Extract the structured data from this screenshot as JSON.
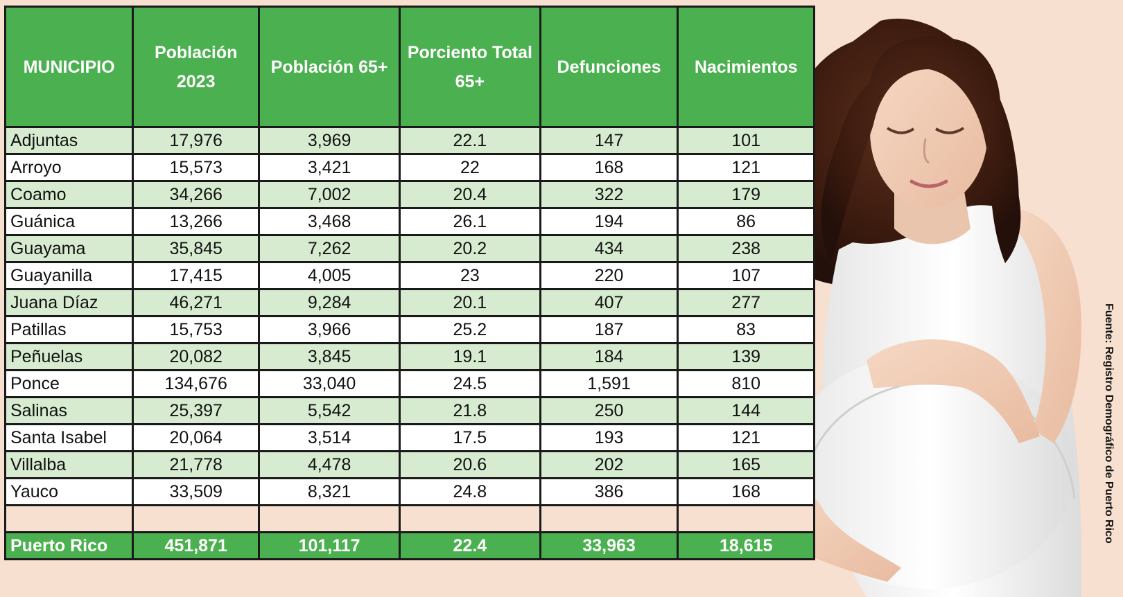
{
  "table": {
    "headers": [
      "MUNICIPIO",
      "Población 2023",
      "Población 65+",
      "Porciento Total 65+",
      "Defunciones",
      "Nacimientos"
    ],
    "rows": [
      [
        "Adjuntas",
        "17,976",
        "3,969",
        "22.1",
        "147",
        "101"
      ],
      [
        "Arroyo",
        "15,573",
        "3,421",
        "22",
        "168",
        "121"
      ],
      [
        "Coamo",
        "34,266",
        "7,002",
        "20.4",
        "322",
        "179"
      ],
      [
        "Guánica",
        "13,266",
        "3,468",
        "26.1",
        "194",
        "86"
      ],
      [
        "Guayama",
        "35,845",
        "7,262",
        "20.2",
        "434",
        "238"
      ],
      [
        "Guayanilla",
        "17,415",
        "4,005",
        "23",
        "220",
        "107"
      ],
      [
        "Juana Díaz",
        "46,271",
        "9,284",
        "20.1",
        "407",
        "277"
      ],
      [
        "Patillas",
        "15,753",
        "3,966",
        "25.2",
        "187",
        "83"
      ],
      [
        "Peñuelas",
        "20,082",
        "3,845",
        "19.1",
        "184",
        "139"
      ],
      [
        "Ponce",
        "134,676",
        "33,040",
        "24.5",
        "1,591",
        "810"
      ],
      [
        "Salinas",
        "25,397",
        "5,542",
        "21.8",
        "250",
        "144"
      ],
      [
        "Santa Isabel",
        "20,064",
        "3,514",
        "17.5",
        "193",
        "121"
      ],
      [
        "Villalba",
        "21,778",
        "4,478",
        "20.6",
        "202",
        "165"
      ],
      [
        "Yauco",
        "33,509",
        "8,321",
        "24.8",
        "386",
        "168"
      ]
    ],
    "total": [
      "Puerto Rico",
      "451,871",
      "101,117",
      "22.4",
      "33,963",
      "18,615"
    ]
  },
  "source": "Fuente: Registro Demográfico de Puerto Rico",
  "colors": {
    "header_green": "#4bb04f",
    "row_light_green": "#d6ebcf",
    "background_peach": "#f7e0cf"
  },
  "image": {
    "subject": "pregnant-woman-photo"
  }
}
